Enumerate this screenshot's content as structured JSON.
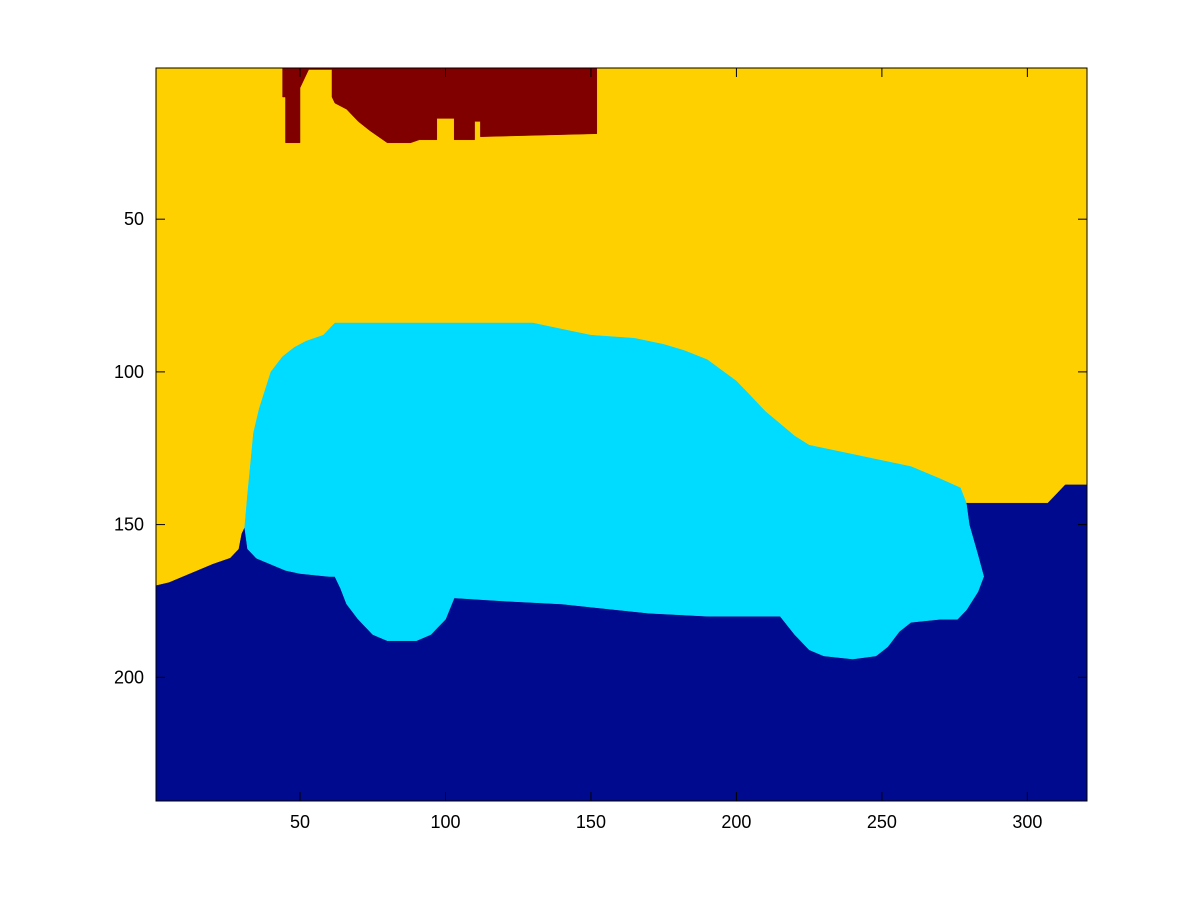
{
  "chart_data": {
    "type": "heatmap",
    "title": "",
    "xlabel": "",
    "ylabel": "",
    "xlim": [
      0.5,
      320.5
    ],
    "ylim": [
      0.5,
      240.5
    ],
    "y_reversed": true,
    "grid": false,
    "legend": "none",
    "x_ticks": [
      50,
      100,
      150,
      200,
      250,
      300
    ],
    "x_tick_labels": [
      "50",
      "100",
      "150",
      "200",
      "250",
      "300"
    ],
    "y_ticks": [
      50,
      100,
      150,
      200
    ],
    "y_tick_labels": [
      "50",
      "100",
      "150",
      "200"
    ],
    "regions": [
      {
        "label": "background-sky",
        "color": "#FFD000",
        "polygon": [
          [
            0.5,
            0.5
          ],
          [
            320.5,
            0.5
          ],
          [
            320.5,
            240.5
          ],
          [
            0.5,
            240.5
          ]
        ]
      },
      {
        "label": "ground",
        "color": "#000A8F",
        "polygon": [
          [
            0.5,
            170
          ],
          [
            5,
            169
          ],
          [
            10,
            167
          ],
          [
            15,
            165
          ],
          [
            20,
            163
          ],
          [
            26,
            161
          ],
          [
            29,
            158
          ],
          [
            30,
            153
          ],
          [
            31,
            151
          ],
          [
            32,
            158
          ],
          [
            35,
            161
          ],
          [
            40,
            163
          ],
          [
            45,
            165
          ],
          [
            50,
            166
          ],
          [
            60,
            167
          ],
          [
            62,
            167
          ],
          [
            64,
            171
          ],
          [
            66,
            176
          ],
          [
            70,
            181
          ],
          [
            75,
            186
          ],
          [
            80,
            188
          ],
          [
            90,
            188
          ],
          [
            95,
            186
          ],
          [
            100,
            181
          ],
          [
            103,
            174
          ],
          [
            120,
            175
          ],
          [
            140,
            176
          ],
          [
            150,
            177
          ],
          [
            170,
            179
          ],
          [
            190,
            180
          ],
          [
            215,
            180
          ],
          [
            220,
            186
          ],
          [
            225,
            191
          ],
          [
            230,
            193
          ],
          [
            240,
            194
          ],
          [
            248,
            193
          ],
          [
            252,
            190
          ],
          [
            256,
            185
          ],
          [
            260,
            182
          ],
          [
            270,
            181
          ],
          [
            276,
            181
          ],
          [
            279,
            178
          ],
          [
            283,
            172
          ],
          [
            285,
            167
          ],
          [
            283,
            160
          ],
          [
            280,
            150
          ],
          [
            279,
            143
          ],
          [
            300,
            143
          ],
          [
            307,
            143
          ],
          [
            310,
            140
          ],
          [
            313,
            137
          ],
          [
            320.5,
            137
          ],
          [
            320.5,
            240.5
          ],
          [
            0.5,
            240.5
          ]
        ]
      },
      {
        "label": "car",
        "color": "#00DCFF",
        "polygon": [
          [
            62,
            84
          ],
          [
            80,
            84
          ],
          [
            100,
            84
          ],
          [
            120,
            84
          ],
          [
            130,
            84
          ],
          [
            135,
            85
          ],
          [
            145,
            87
          ],
          [
            150,
            88
          ],
          [
            165,
            89
          ],
          [
            175,
            91
          ],
          [
            182,
            93
          ],
          [
            190,
            96
          ],
          [
            200,
            103
          ],
          [
            205,
            108
          ],
          [
            210,
            113
          ],
          [
            215,
            117
          ],
          [
            220,
            121
          ],
          [
            225,
            124
          ],
          [
            235,
            126
          ],
          [
            250,
            129
          ],
          [
            260,
            131
          ],
          [
            270,
            135
          ],
          [
            277,
            138
          ],
          [
            279,
            143
          ],
          [
            280,
            150
          ],
          [
            283,
            160
          ],
          [
            285,
            167
          ],
          [
            283,
            172
          ],
          [
            279,
            178
          ],
          [
            276,
            181
          ],
          [
            270,
            181
          ],
          [
            260,
            182
          ],
          [
            256,
            185
          ],
          [
            252,
            190
          ],
          [
            248,
            193
          ],
          [
            240,
            194
          ],
          [
            230,
            193
          ],
          [
            225,
            191
          ],
          [
            220,
            186
          ],
          [
            215,
            180
          ],
          [
            190,
            180
          ],
          [
            170,
            179
          ],
          [
            150,
            177
          ],
          [
            140,
            176
          ],
          [
            120,
            175
          ],
          [
            103,
            174
          ],
          [
            100,
            181
          ],
          [
            95,
            186
          ],
          [
            90,
            188
          ],
          [
            80,
            188
          ],
          [
            75,
            186
          ],
          [
            70,
            181
          ],
          [
            66,
            176
          ],
          [
            64,
            171
          ],
          [
            62,
            167
          ],
          [
            60,
            167
          ],
          [
            50,
            166
          ],
          [
            45,
            165
          ],
          [
            40,
            163
          ],
          [
            35,
            161
          ],
          [
            32,
            158
          ],
          [
            31,
            151
          ],
          [
            32,
            140
          ],
          [
            33,
            130
          ],
          [
            34,
            120
          ],
          [
            36,
            112
          ],
          [
            38,
            106
          ],
          [
            40,
            100
          ],
          [
            44,
            95
          ],
          [
            48,
            92
          ],
          [
            52,
            90
          ],
          [
            58,
            88
          ]
        ]
      },
      {
        "label": "building",
        "color": "#800000",
        "polygon": [
          [
            44,
            0.5
          ],
          [
            152,
            0.5
          ],
          [
            152,
            22
          ],
          [
            112,
            23
          ],
          [
            112,
            18
          ],
          [
            110,
            18
          ],
          [
            110,
            24
          ],
          [
            103,
            24
          ],
          [
            103,
            17
          ],
          [
            97,
            17
          ],
          [
            97,
            24
          ],
          [
            91,
            24
          ],
          [
            88,
            25
          ],
          [
            80,
            25
          ],
          [
            74,
            21
          ],
          [
            70,
            18
          ],
          [
            66,
            14
          ],
          [
            62,
            12
          ],
          [
            61,
            10
          ],
          [
            61,
            1
          ],
          [
            53,
            1
          ],
          [
            50,
            7
          ],
          [
            50,
            25
          ],
          [
            45,
            25
          ],
          [
            45,
            10
          ],
          [
            44,
            10
          ]
        ]
      },
      {
        "label": "building-gap-yellow",
        "color": "#FFD000",
        "polygon": [
          [
            51,
            9
          ],
          [
            53,
            3
          ],
          [
            56,
            8
          ],
          [
            56,
            25
          ],
          [
            51,
            25
          ]
        ]
      }
    ]
  }
}
